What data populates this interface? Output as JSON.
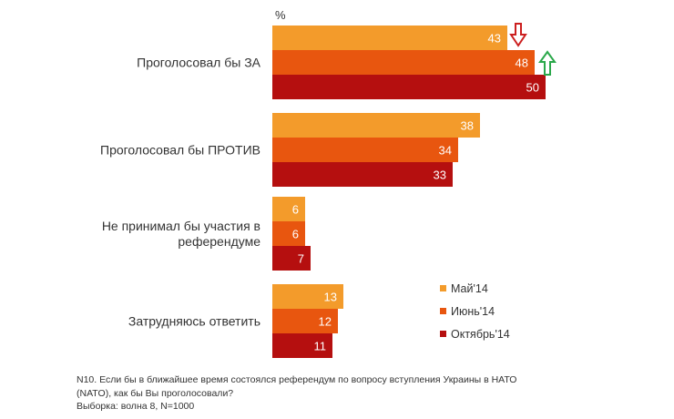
{
  "chart_data": {
    "type": "bar",
    "orientation": "horizontal",
    "unit_label": "%",
    "categories": [
      [
        "Проголосовал бы ЗА"
      ],
      [
        "Проголосовал бы ПРОТИВ"
      ],
      [
        "Не принимал бы участия в",
        "референдуме"
      ],
      [
        "Затрудняюсь ответить"
      ]
    ],
    "series": [
      {
        "name": "Май'14",
        "color": "#f39b2b",
        "values": [
          43,
          38,
          6,
          13
        ]
      },
      {
        "name": "Июнь'14",
        "color": "#e8560f",
        "values": [
          48,
          34,
          6,
          12
        ]
      },
      {
        "name": "Октябрь'14",
        "color": "#b50f0f",
        "values": [
          50,
          33,
          7,
          11
        ]
      }
    ],
    "xlim": [
      0,
      50
    ],
    "grid": false,
    "legend_position": "bottom-right",
    "annotations": [
      {
        "type": "arrow-down",
        "category_index": 0,
        "series_index": 0,
        "color": "#cc1f1f"
      },
      {
        "type": "arrow-up",
        "category_index": 0,
        "series_index": 1,
        "color": "#2aa84a"
      }
    ]
  },
  "footnote": {
    "lines": [
      "N10. Если бы в ближайшее время состоялся референдум по вопросу вступления Украины в НАТО",
      "(NATO), как бы Вы проголосовали?",
      "Выборка: волна 8, N=1000"
    ]
  }
}
